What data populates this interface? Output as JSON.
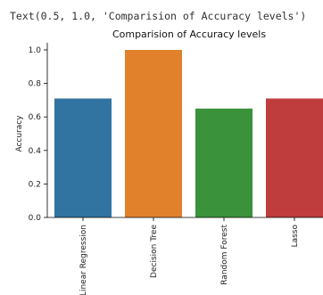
{
  "output_text": "Text(0.5, 1.0, 'Comparision of Accuracy levels')",
  "chart_data": {
    "type": "bar",
    "title": "Comparision of Accuracy levels",
    "xlabel": "",
    "ylabel": "Accuracy",
    "categories": [
      "Linear Regression",
      "Decision Tree",
      "Random Forest",
      "Lasso"
    ],
    "values": [
      0.71,
      1.0,
      0.65,
      0.71
    ],
    "colors": [
      "#3274a1",
      "#e1812c",
      "#3a923a",
      "#c03d3e"
    ],
    "ylim": [
      0,
      1.0
    ],
    "yticks": [
      0.0,
      0.2,
      0.4,
      0.6,
      0.8,
      1.0
    ],
    "ytick_labels": [
      "0.0",
      "0.2",
      "0.4",
      "0.6",
      "0.8",
      "1.0"
    ],
    "grid": false,
    "legend": "none"
  }
}
